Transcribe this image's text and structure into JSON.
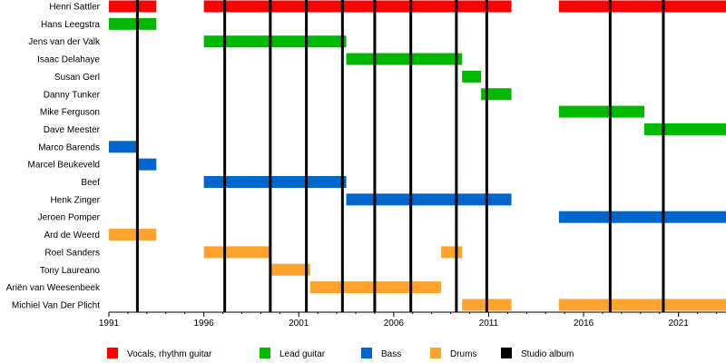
{
  "chart_data": {
    "type": "timeline",
    "x_range": [
      1991,
      2023.5
    ],
    "x_ticks": [
      "1991",
      "1996",
      "2001",
      "2006",
      "2011",
      "2016",
      "2021"
    ],
    "members": [
      "Henri Sattler",
      "Hans Leegstra",
      "Jens van der Valk",
      "Isaac Delahaye",
      "Susan Gerl",
      "Danny Tunker",
      "Mike Ferguson",
      "Dave Meester",
      "Marco Barends",
      "Marcel Beukeveld",
      "Beef",
      "Henk Zinger",
      "Jeroen Pomper",
      "Ard de Weerd",
      "Roel Sanders",
      "Tony Laureano",
      "Ariën van Weesenbeek",
      "Michiel Van Der Plicht"
    ],
    "roles": [
      {
        "key": "vocals",
        "label": "Vocals, rhythm guitar",
        "color": "#ff0000"
      },
      {
        "key": "lead",
        "label": "Lead guitar",
        "color": "#00b800"
      },
      {
        "key": "bass",
        "label": "Bass",
        "color": "#0066cc"
      },
      {
        "key": "drums",
        "label": "Drums",
        "color": "#ffa32f"
      },
      {
        "key": "album",
        "label": "Studio album",
        "color": "#000000"
      }
    ],
    "periods": [
      {
        "member": 0,
        "role": "vocals",
        "start": 1991,
        "end": 1993.5
      },
      {
        "member": 0,
        "role": "vocals",
        "start": 1996,
        "end": 2012.2
      },
      {
        "member": 0,
        "role": "vocals",
        "start": 2014.7,
        "end": 2023.5
      },
      {
        "member": 1,
        "role": "lead",
        "start": 1991,
        "end": 1993.5
      },
      {
        "member": 2,
        "role": "lead",
        "start": 1996,
        "end": 2003.5
      },
      {
        "member": 3,
        "role": "lead",
        "start": 2003.5,
        "end": 2009.6
      },
      {
        "member": 4,
        "role": "lead",
        "start": 2009.6,
        "end": 2010.6
      },
      {
        "member": 5,
        "role": "lead",
        "start": 2010.6,
        "end": 2012.2
      },
      {
        "member": 6,
        "role": "lead",
        "start": 2014.7,
        "end": 2019.2
      },
      {
        "member": 7,
        "role": "lead",
        "start": 2019.2,
        "end": 2023.5
      },
      {
        "member": 8,
        "role": "bass",
        "start": 1991,
        "end": 1992.5
      },
      {
        "member": 9,
        "role": "bass",
        "start": 1992.5,
        "end": 1993.5
      },
      {
        "member": 10,
        "role": "bass",
        "start": 1996,
        "end": 2003.5
      },
      {
        "member": 11,
        "role": "bass",
        "start": 2003.5,
        "end": 2012.2
      },
      {
        "member": 12,
        "role": "bass",
        "start": 2014.7,
        "end": 2023.5
      },
      {
        "member": 13,
        "role": "drums",
        "start": 1991,
        "end": 1993.5
      },
      {
        "member": 14,
        "role": "drums",
        "start": 1996,
        "end": 1999.5
      },
      {
        "member": 14,
        "role": "drums",
        "start": 2008.5,
        "end": 2009.6
      },
      {
        "member": 15,
        "role": "drums",
        "start": 1999.5,
        "end": 2001.6
      },
      {
        "member": 16,
        "role": "drums",
        "start": 2001.6,
        "end": 2008.5
      },
      {
        "member": 17,
        "role": "drums",
        "start": 2009.6,
        "end": 2012.2
      },
      {
        "member": 17,
        "role": "drums",
        "start": 2014.7,
        "end": 2023.5
      }
    ],
    "albums": [
      1992.5,
      1997.1,
      1999.5,
      2001.4,
      2003.3,
      2005.0,
      2006.9,
      2009.3,
      2010.9,
      2017.4,
      2020.2
    ]
  }
}
